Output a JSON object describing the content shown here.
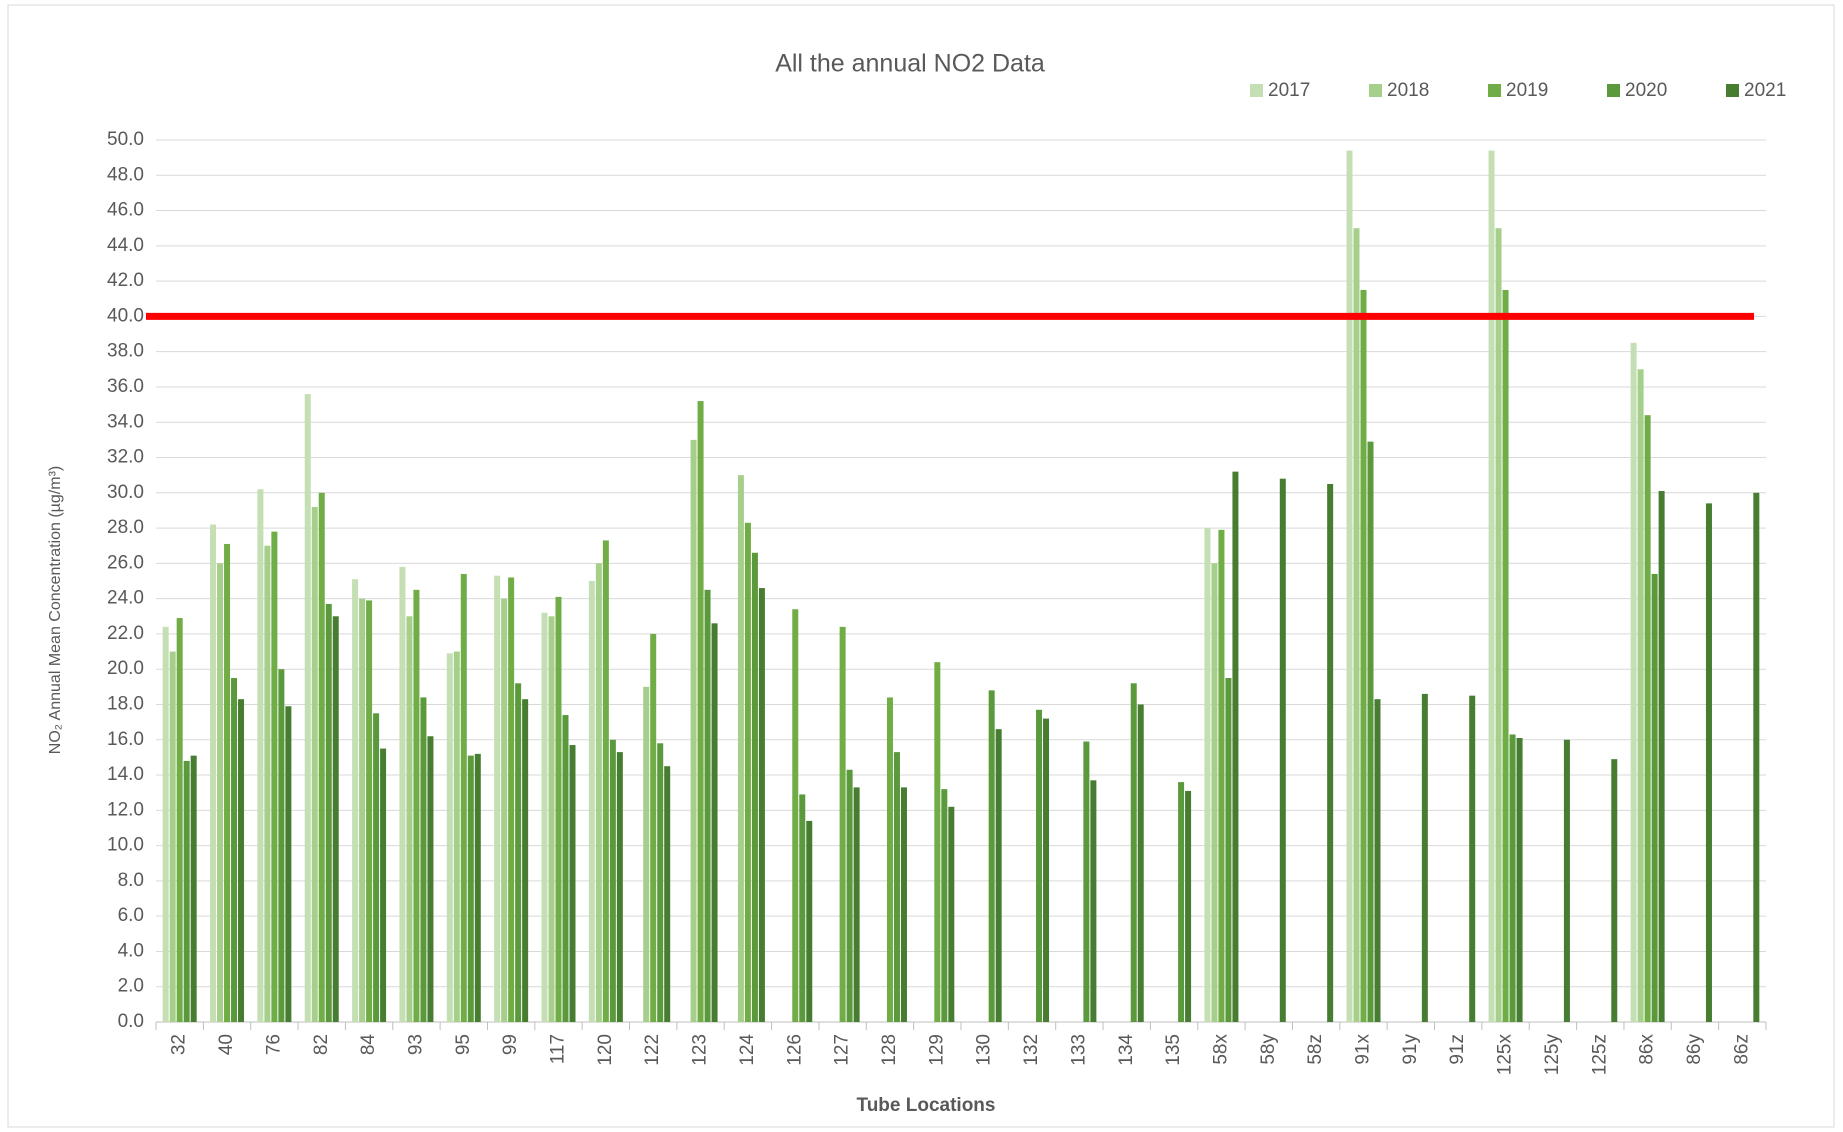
{
  "chart_data": {
    "type": "bar",
    "title": "All the annual NO2 Data",
    "x_label": "Tube Locations",
    "y_label": "NO₂ Annual Mean Concentration (µg/m³)",
    "categories": [
      "32",
      "40",
      "76",
      "82",
      "84",
      "93",
      "95",
      "99",
      "117",
      "120",
      "122",
      "123",
      "124",
      "126",
      "127",
      "128",
      "129",
      "130",
      "132",
      "133",
      "134",
      "135",
      "58x",
      "58y",
      "58z",
      "91x",
      "91y",
      "91z",
      "125x",
      "125y",
      "125z",
      "86x",
      "86y",
      "86z"
    ],
    "series": [
      {
        "name": "2017",
        "color": "#c5dfb4",
        "values": [
          22.4,
          28.2,
          30.2,
          35.6,
          25.1,
          25.8,
          20.9,
          25.3,
          23.2,
          25.0,
          null,
          null,
          null,
          null,
          null,
          null,
          null,
          null,
          null,
          null,
          null,
          null,
          28.0,
          null,
          null,
          49.4,
          null,
          null,
          49.4,
          null,
          null,
          38.5,
          null,
          null
        ]
      },
      {
        "name": "2018",
        "color": "#a7cf8c",
        "values": [
          21.0,
          26.0,
          27.0,
          29.2,
          24.0,
          23.0,
          21.0,
          24.0,
          23.0,
          26.0,
          19.0,
          33.0,
          31.0,
          null,
          null,
          null,
          null,
          null,
          null,
          null,
          null,
          null,
          26.0,
          null,
          null,
          45.0,
          null,
          null,
          45.0,
          null,
          null,
          37.0,
          null,
          null
        ]
      },
      {
        "name": "2019",
        "color": "#70ad47",
        "values": [
          22.9,
          27.1,
          27.8,
          30.0,
          23.9,
          24.5,
          25.4,
          25.2,
          24.1,
          27.3,
          22.0,
          35.2,
          28.3,
          23.4,
          22.4,
          18.4,
          20.4,
          null,
          null,
          null,
          null,
          null,
          27.9,
          null,
          null,
          41.5,
          null,
          null,
          41.5,
          null,
          null,
          34.4,
          null,
          null
        ]
      },
      {
        "name": "2020",
        "color": "#5b9a3c",
        "values": [
          14.8,
          19.5,
          20.0,
          23.7,
          17.5,
          18.4,
          15.1,
          19.2,
          17.4,
          16.0,
          15.8,
          24.5,
          26.6,
          12.9,
          14.3,
          15.3,
          13.2,
          18.8,
          17.7,
          15.9,
          19.2,
          13.6,
          19.5,
          null,
          null,
          32.9,
          null,
          null,
          16.3,
          null,
          null,
          25.4,
          null,
          null
        ]
      },
      {
        "name": "2021",
        "color": "#477d31",
        "values": [
          15.1,
          18.3,
          17.9,
          23.0,
          15.5,
          16.2,
          15.2,
          18.3,
          15.7,
          15.3,
          14.5,
          22.6,
          24.6,
          11.4,
          13.3,
          13.3,
          12.2,
          16.6,
          17.2,
          13.7,
          18.0,
          13.1,
          31.2,
          30.8,
          30.5,
          18.3,
          18.6,
          18.5,
          16.1,
          16.0,
          14.9,
          30.1,
          29.4,
          30.0
        ]
      }
    ],
    "threshold": 40,
    "threshold_color": "#ff0000",
    "ylim": [
      0,
      50
    ],
    "yticks": [
      {
        "value": 0,
        "label": "0.0"
      },
      {
        "value": 2,
        "label": "2.0"
      },
      {
        "value": 4,
        "label": "4.0"
      },
      {
        "value": 6,
        "label": "6.0"
      },
      {
        "value": 8,
        "label": "8.0"
      },
      {
        "value": 10,
        "label": "10.0"
      },
      {
        "value": 12,
        "label": "12.0"
      },
      {
        "value": 14,
        "label": "14.0"
      },
      {
        "value": 16,
        "label": "16.0"
      },
      {
        "value": 18,
        "label": "18.0"
      },
      {
        "value": 20,
        "label": "20.0"
      },
      {
        "value": 22,
        "label": "22.0"
      },
      {
        "value": 24,
        "label": "24.0"
      },
      {
        "value": 26,
        "label": "26.0"
      },
      {
        "value": 28,
        "label": "28.0"
      },
      {
        "value": 30,
        "label": "30.0"
      },
      {
        "value": 32,
        "label": "32.0"
      },
      {
        "value": 34,
        "label": "34.0"
      },
      {
        "value": 36,
        "label": "36.0"
      },
      {
        "value": 38,
        "label": "38.0"
      },
      {
        "value": 40,
        "label": "40.0"
      },
      {
        "value": 42,
        "label": "42.0"
      },
      {
        "value": 44,
        "label": "44.0"
      },
      {
        "value": 46,
        "label": "46.0"
      },
      {
        "value": 48,
        "label": "48.0"
      },
      {
        "value": 50,
        "label": "50.0"
      }
    ],
    "grid": true,
    "legend": "top-right"
  }
}
